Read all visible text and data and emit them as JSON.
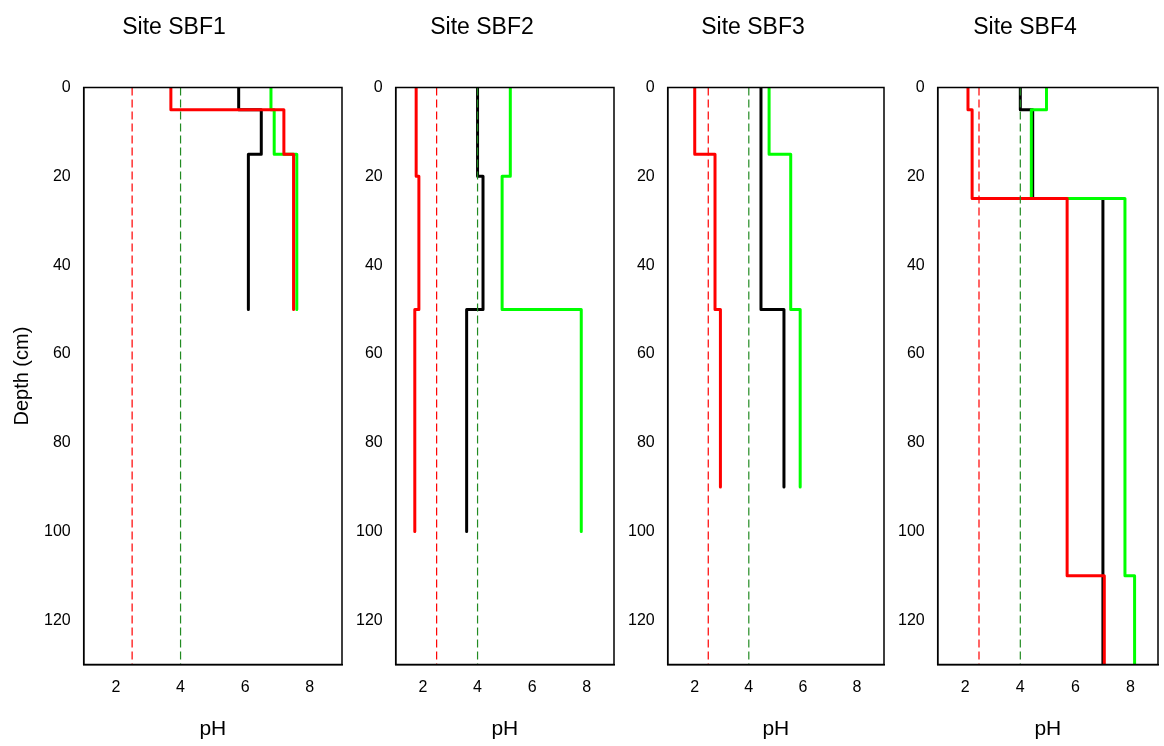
{
  "chart_data": [
    {
      "type": "line",
      "title": "Site SBF1",
      "xlabel": "pH",
      "ylabel": "Depth (cm)",
      "xlim": [
        1,
        9
      ],
      "xticks": [
        2,
        4,
        6,
        8
      ],
      "ylim": [
        130,
        0
      ],
      "yticks": [
        0,
        20,
        40,
        60,
        80,
        100,
        120
      ],
      "grid": false,
      "legend": false,
      "series": [
        {
          "color": "#ff0000",
          "x": [
            3.7,
            3.7,
            7.2,
            7.2,
            7.5,
            7.5
          ],
          "values": [
            0,
            5,
            5,
            15,
            15,
            50
          ]
        },
        {
          "color": "#00ff00",
          "x": [
            6.8,
            6.8,
            6.9,
            6.9,
            7.6,
            7.6
          ],
          "values": [
            0,
            5,
            5,
            15,
            15,
            50
          ]
        },
        {
          "color": "#000000",
          "x": [
            5.8,
            5.8,
            6.5,
            6.5,
            6.1,
            6.1
          ],
          "values": [
            0,
            5,
            5,
            15,
            15,
            50
          ]
        }
      ],
      "ref_lines": [
        {
          "axis": "x",
          "value": 2.5,
          "color": "#ff0000",
          "line_style": "dashed"
        },
        {
          "axis": "x",
          "value": 4,
          "color": "#228b22",
          "line_style": "dashed"
        }
      ]
    },
    {
      "type": "line",
      "title": "Site SBF2",
      "xlabel": "pH",
      "xlim": [
        1,
        9
      ],
      "xticks": [
        2,
        4,
        6,
        8
      ],
      "ylim": [
        130,
        0
      ],
      "yticks": [
        0,
        20,
        40,
        60,
        80,
        100,
        120
      ],
      "grid": false,
      "legend": false,
      "series": [
        {
          "color": "#ff0000",
          "x": [
            1.75,
            1.75,
            1.85,
            1.85,
            1.7,
            1.7
          ],
          "values": [
            0,
            20,
            20,
            50,
            50,
            100
          ]
        },
        {
          "color": "#000000",
          "x": [
            4,
            4,
            4.2,
            4.2,
            3.6,
            3.6
          ],
          "values": [
            0,
            20,
            20,
            50,
            50,
            100
          ]
        },
        {
          "color": "#00ff00",
          "x": [
            5.2,
            5.2,
            4.9,
            4.9,
            7.8,
            7.8
          ],
          "values": [
            0,
            20,
            20,
            50,
            50,
            100
          ]
        }
      ],
      "ref_lines": [
        {
          "axis": "x",
          "value": 2.5,
          "color": "#ff0000",
          "line_style": "dashed"
        },
        {
          "axis": "x",
          "value": 4,
          "color": "#228b22",
          "line_style": "dashed"
        }
      ]
    },
    {
      "type": "line",
      "title": "Site SBF3",
      "xlabel": "pH",
      "xlim": [
        1,
        9
      ],
      "xticks": [
        2,
        4,
        6,
        8
      ],
      "ylim": [
        130,
        0
      ],
      "yticks": [
        0,
        20,
        40,
        60,
        80,
        100,
        120
      ],
      "grid": false,
      "legend": false,
      "series": [
        {
          "color": "#ff0000",
          "x": [
            2,
            2,
            2.75,
            2.75,
            2.95,
            2.95
          ],
          "values": [
            0,
            15,
            15,
            50,
            50,
            90
          ]
        },
        {
          "color": "#000000",
          "x": [
            4.45,
            4.45,
            5.3,
            5.3
          ],
          "values": [
            0,
            50,
            50,
            90
          ]
        },
        {
          "color": "#00ff00",
          "x": [
            4.75,
            4.75,
            5.55,
            5.55,
            5.9,
            5.9
          ],
          "values": [
            0,
            15,
            15,
            50,
            50,
            90
          ]
        }
      ],
      "ref_lines": [
        {
          "axis": "x",
          "value": 2.5,
          "color": "#ff0000",
          "line_style": "dashed"
        },
        {
          "axis": "x",
          "value": 4,
          "color": "#228b22",
          "line_style": "dashed"
        }
      ]
    },
    {
      "type": "line",
      "title": "Site SBF4",
      "xlabel": "pH",
      "xlim": [
        1,
        9
      ],
      "xticks": [
        2,
        4,
        6,
        8
      ],
      "ylim": [
        130,
        0
      ],
      "yticks": [
        0,
        20,
        40,
        60,
        80,
        100,
        120
      ],
      "grid": false,
      "legend": false,
      "series": [
        {
          "color": "#ff0000",
          "x": [
            2.1,
            2.1,
            2.25,
            2.25,
            5.7,
            5.7,
            7.05,
            7.05
          ],
          "values": [
            0,
            5,
            5,
            25,
            25,
            110,
            110,
            130
          ]
        },
        {
          "color": "#00ff00",
          "x": [
            4.95,
            4.95,
            4.4,
            4.4,
            7.8,
            7.8,
            8.15,
            8.15
          ],
          "values": [
            0,
            5,
            5,
            25,
            25,
            110,
            110,
            130
          ]
        },
        {
          "color": "#000000",
          "x": [
            4,
            4,
            4.45,
            4.45,
            7,
            7
          ],
          "values": [
            0,
            5,
            5,
            25,
            25,
            130
          ]
        }
      ],
      "ref_lines": [
        {
          "axis": "x",
          "value": 2.5,
          "color": "#ff0000",
          "line_style": "dashed"
        },
        {
          "axis": "x",
          "value": 4,
          "color": "#228b22",
          "line_style": "dashed"
        }
      ]
    }
  ]
}
